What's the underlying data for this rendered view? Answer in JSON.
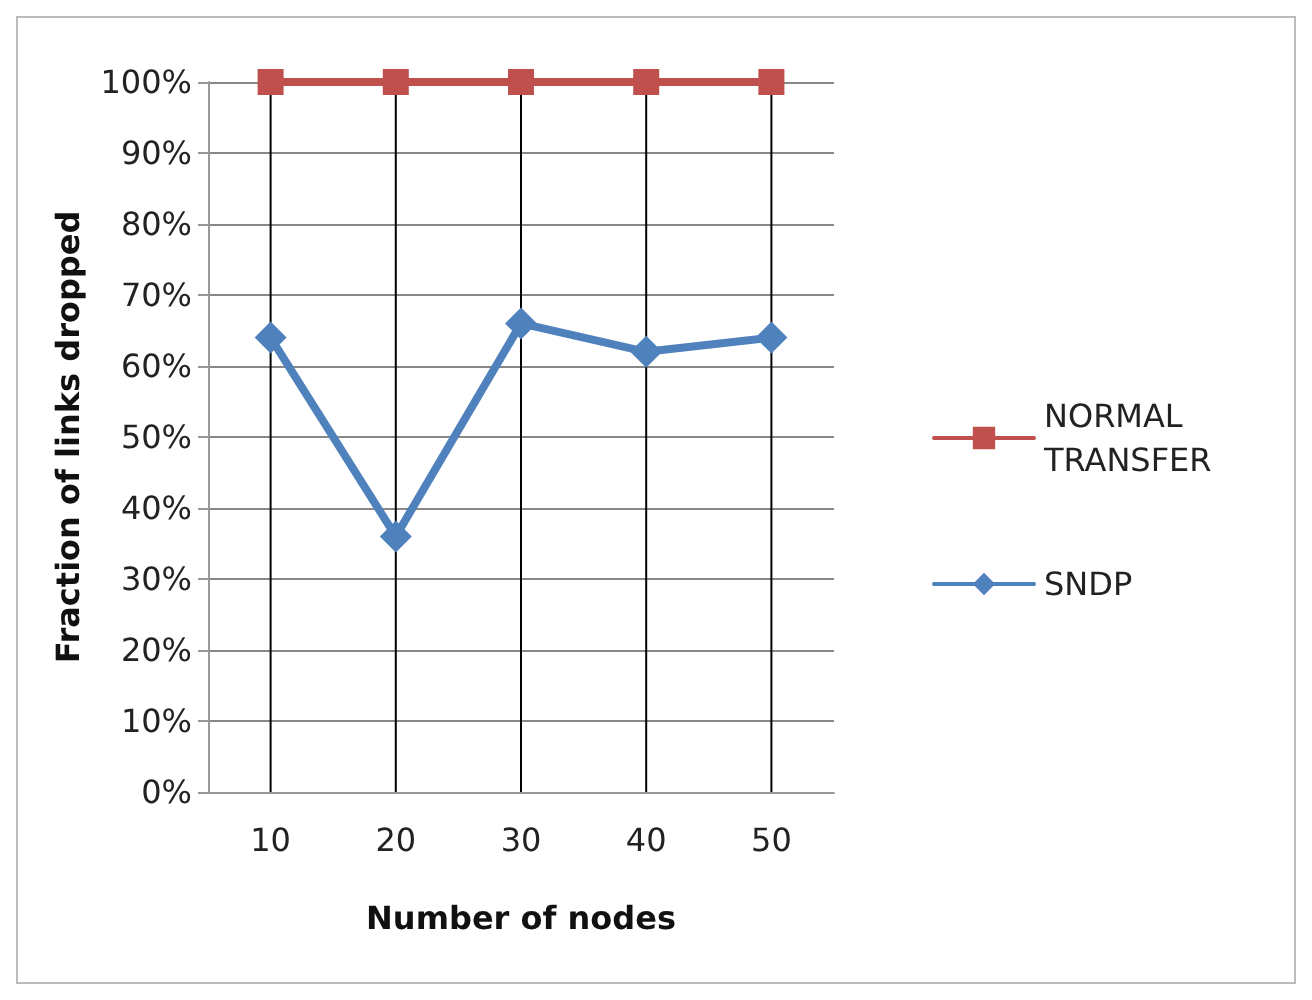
{
  "chart_data": {
    "type": "line",
    "xlabel": "Number of nodes",
    "ylabel": "Fraction of links dropped",
    "categories": [
      "10",
      "20",
      "30",
      "40",
      "50"
    ],
    "series": [
      {
        "name": "NORMAL TRANSFER",
        "color": "#c0504d",
        "marker": "square",
        "values": [
          100,
          100,
          100,
          100,
          100
        ]
      },
      {
        "name": "SNDP",
        "color": "#4f81bd",
        "marker": "diamond",
        "values": [
          64,
          36,
          66,
          62,
          64
        ]
      }
    ],
    "ylim": [
      0,
      100
    ],
    "yticks": [
      {
        "value": 0,
        "label": "0%"
      },
      {
        "value": 10,
        "label": "10%"
      },
      {
        "value": 20,
        "label": "20%"
      },
      {
        "value": 30,
        "label": "30%"
      },
      {
        "value": 40,
        "label": "40%"
      },
      {
        "value": 50,
        "label": "50%"
      },
      {
        "value": 60,
        "label": "60%"
      },
      {
        "value": 70,
        "label": "70%"
      },
      {
        "value": 80,
        "label": "80%"
      },
      {
        "value": 90,
        "label": "90%"
      },
      {
        "value": 100,
        "label": "100%"
      }
    ],
    "grid": true,
    "legend": "right",
    "line_style": "solid"
  }
}
